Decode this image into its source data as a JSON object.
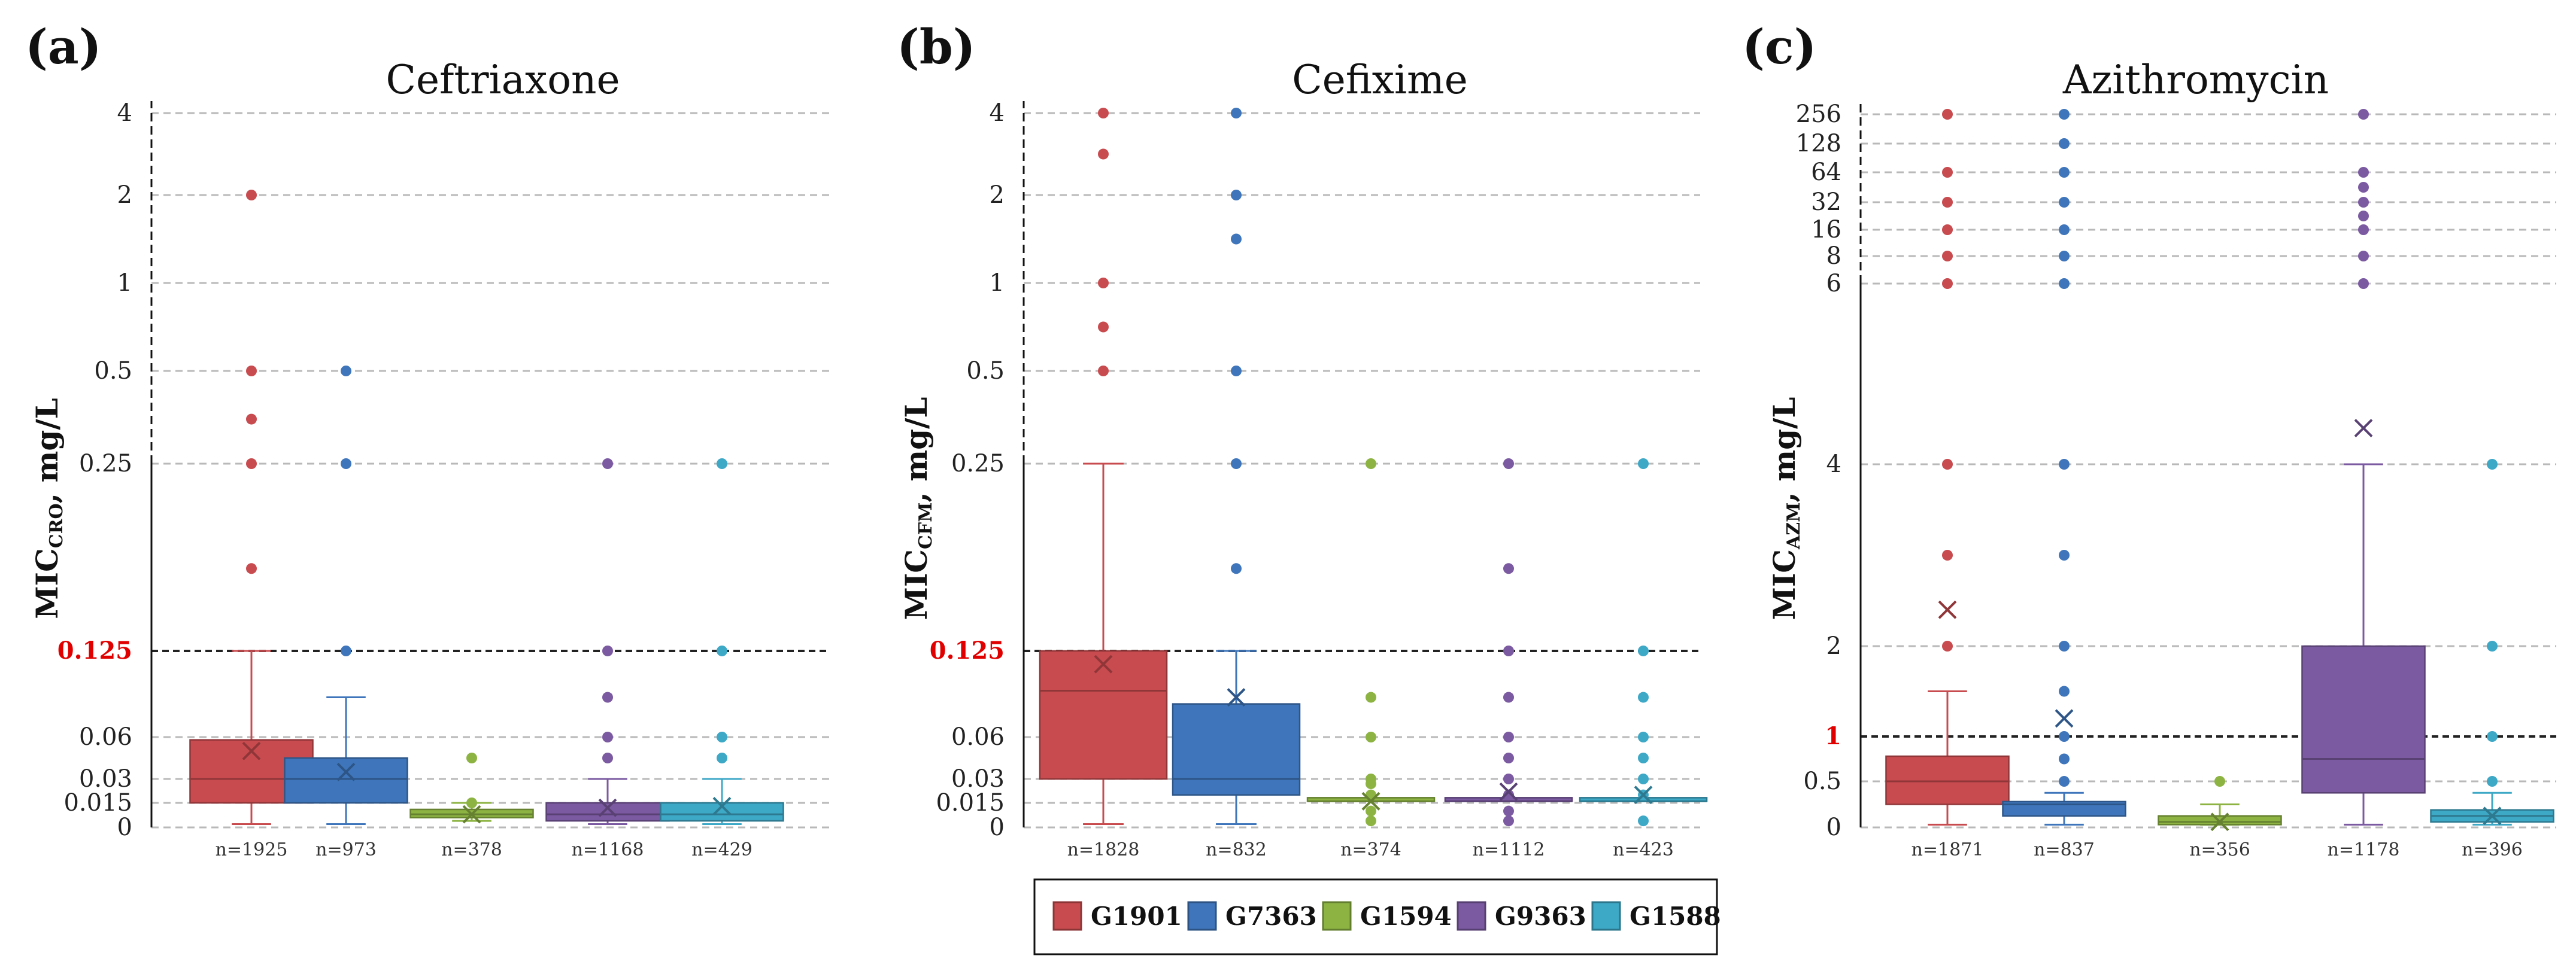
{
  "legend": [
    {
      "label": "G1901",
      "color": "#c84b4f"
    },
    {
      "label": "G7363",
      "color": "#3f76bb"
    },
    {
      "label": "G1594",
      "color": "#8db443"
    },
    {
      "label": "G9363",
      "color": "#7b5aa1"
    },
    {
      "label": "G1588",
      "color": "#3ea8c7"
    }
  ],
  "chart_data": [
    {
      "panel": "(a)",
      "type": "box",
      "title": "Ceftriaxone",
      "ylabel_main": "MIC",
      "ylabel_sub": "CRO",
      "ylabel_unit": ", mg/L",
      "yscale": "piecewise",
      "y_ticks": [
        {
          "label": "0",
          "value": 0
        },
        {
          "label": "0.015",
          "value": 0.015
        },
        {
          "label": "0.03",
          "value": 0.03
        },
        {
          "label": "0.06",
          "value": 0.06
        },
        {
          "label": "0.125",
          "value": 0.125,
          "threshold": true
        },
        {
          "label": "0.25",
          "value": 0.25
        },
        {
          "label": "0.5",
          "value": 0.5
        },
        {
          "label": "1",
          "value": 1
        },
        {
          "label": "2",
          "value": 2
        },
        {
          "label": "4",
          "value": 4
        }
      ],
      "threshold": 0.125,
      "series": [
        {
          "name": "G1901",
          "n": "n=1925",
          "whisker_low": 0.002,
          "q1": 0.015,
          "median": 0.03,
          "q3": 0.058,
          "whisker_high": 0.125,
          "mean": 0.05,
          "outliers": [
            0.18,
            0.25,
            0.37,
            0.5,
            2
          ]
        },
        {
          "name": "G7363",
          "n": "n=973",
          "whisker_low": 0.002,
          "q1": 0.015,
          "median": 0.03,
          "q3": 0.045,
          "whisker_high": 0.09,
          "mean": 0.035,
          "outliers": [
            0.125,
            0.25,
            0.5
          ]
        },
        {
          "name": "G1594",
          "n": "n=378",
          "whisker_low": 0.004,
          "q1": 0.006,
          "median": 0.008,
          "q3": 0.011,
          "whisker_high": 0.015,
          "mean": 0.008,
          "outliers": [
            0.015,
            0.045
          ]
        },
        {
          "name": "G9363",
          "n": "n=1168",
          "whisker_low": 0.002,
          "q1": 0.004,
          "median": 0.008,
          "q3": 0.015,
          "whisker_high": 0.03,
          "mean": 0.012,
          "outliers": [
            0.045,
            0.06,
            0.09,
            0.125,
            0.25
          ]
        },
        {
          "name": "G1588",
          "n": "n=429",
          "whisker_low": 0.002,
          "q1": 0.004,
          "median": 0.008,
          "q3": 0.015,
          "whisker_high": 0.03,
          "mean": 0.013,
          "outliers": [
            0.045,
            0.06,
            0.125,
            0.25
          ]
        }
      ]
    },
    {
      "panel": "(b)",
      "type": "box",
      "title": "Cefixime",
      "ylabel_main": "MIC",
      "ylabel_sub": "CFM",
      "ylabel_unit": ", mg/L",
      "yscale": "piecewise",
      "y_ticks": [
        {
          "label": "0",
          "value": 0
        },
        {
          "label": "0.015",
          "value": 0.015
        },
        {
          "label": "0.03",
          "value": 0.03
        },
        {
          "label": "0.06",
          "value": 0.06
        },
        {
          "label": "0.125",
          "value": 0.125,
          "threshold": true
        },
        {
          "label": "0.25",
          "value": 0.25
        },
        {
          "label": "0.5",
          "value": 0.5
        },
        {
          "label": "1",
          "value": 1
        },
        {
          "label": "2",
          "value": 2
        },
        {
          "label": "4",
          "value": 4
        }
      ],
      "threshold": 0.125,
      "series": [
        {
          "name": "G1901",
          "n": "n=1828",
          "whisker_low": 0.002,
          "q1": 0.03,
          "median": 0.095,
          "q3": 0.125,
          "whisker_high": 0.25,
          "mean": 0.115,
          "outliers": [
            0.5,
            0.75,
            1,
            3,
            4
          ]
        },
        {
          "name": "G7363",
          "n": "n=832",
          "whisker_low": 0.002,
          "q1": 0.02,
          "median": 0.03,
          "q3": 0.085,
          "whisker_high": 0.125,
          "mean": 0.09,
          "outliers": [
            0.18,
            0.25,
            0.5,
            1.5,
            2,
            4
          ]
        },
        {
          "name": "G1594",
          "n": "n=374",
          "whisker_low": 0.016,
          "q1": 0.016,
          "median": 0.016,
          "q3": 0.017,
          "whisker_high": 0.017,
          "mean": 0.016,
          "outliers": [
            0.004,
            0.01,
            0.02,
            0.027,
            0.03,
            0.06,
            0.09,
            0.25
          ]
        },
        {
          "name": "G9363",
          "n": "n=1112",
          "whisker_low": 0.016,
          "q1": 0.016,
          "median": 0.016,
          "q3": 0.017,
          "whisker_high": 0.017,
          "mean": 0.022,
          "outliers": [
            0.004,
            0.01,
            0.02,
            0.03,
            0.045,
            0.06,
            0.09,
            0.125,
            0.18,
            0.25
          ]
        },
        {
          "name": "G1588",
          "n": "n=423",
          "whisker_low": 0.016,
          "q1": 0.016,
          "median": 0.016,
          "q3": 0.017,
          "whisker_high": 0.017,
          "mean": 0.02,
          "outliers": [
            0.004,
            0.02,
            0.03,
            0.045,
            0.06,
            0.09,
            0.125,
            0.25
          ]
        }
      ]
    },
    {
      "panel": "(c)",
      "type": "box",
      "title": "Azithromycin",
      "ylabel_main": "MIC",
      "ylabel_sub": "AZM",
      "ylabel_unit": ", mg/L",
      "yscale": "piecewise",
      "y_ticks": [
        {
          "label": "0",
          "value": 0
        },
        {
          "label": "0.5",
          "value": 0.5
        },
        {
          "label": "1",
          "value": 1,
          "threshold": true
        },
        {
          "label": "2",
          "value": 2
        },
        {
          "label": "4",
          "value": 4
        },
        {
          "label": "6",
          "value": 6
        },
        {
          "label": "8",
          "value": 8
        },
        {
          "label": "16",
          "value": 16
        },
        {
          "label": "32",
          "value": 32
        },
        {
          "label": "64",
          "value": 64
        },
        {
          "label": "128",
          "value": 128
        },
        {
          "label": "256",
          "value": 256
        }
      ],
      "threshold": 1,
      "series": [
        {
          "name": "G1901",
          "n": "n=1871",
          "whisker_low": 0.03,
          "q1": 0.25,
          "median": 0.5,
          "q3": 0.78,
          "whisker_high": 1.5,
          "mean": 2.4,
          "outliers": [
            2,
            3,
            4,
            6,
            8,
            16,
            32,
            64,
            256
          ]
        },
        {
          "name": "G7363",
          "n": "n=837",
          "whisker_low": 0.03,
          "q1": 0.125,
          "median": 0.25,
          "q3": 0.28,
          "whisker_high": 0.375,
          "mean": 1.2,
          "outliers": [
            0.5,
            0.75,
            1,
            1.5,
            2,
            3,
            4,
            6,
            8,
            16,
            32,
            64,
            128,
            256
          ]
        },
        {
          "name": "G1594",
          "n": "n=356",
          "whisker_low": 0.03,
          "q1": 0.03,
          "median": 0.06,
          "q3": 0.125,
          "whisker_high": 0.25,
          "mean": 0.06,
          "outliers": [
            0.5
          ]
        },
        {
          "name": "G9363",
          "n": "n=1178",
          "whisker_low": 0.03,
          "q1": 0.375,
          "median": 0.75,
          "q3": 2,
          "whisker_high": 4,
          "mean": 4.4,
          "outliers": [
            6,
            8,
            16,
            24,
            32,
            48,
            64,
            256
          ]
        },
        {
          "name": "G1588",
          "n": "n=396",
          "whisker_low": 0.03,
          "q1": 0.06,
          "median": 0.125,
          "q3": 0.19,
          "whisker_high": 0.375,
          "mean": 0.125,
          "outliers": [
            0.5,
            1,
            2,
            4
          ]
        }
      ]
    }
  ]
}
